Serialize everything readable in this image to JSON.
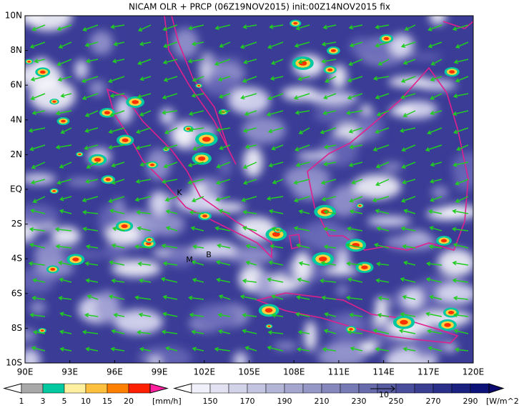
{
  "title": "NICAM OLR + PRCP (06Z19NOV2015) init:00Z14NOV2015 fix",
  "lat_labels": [
    "10N",
    "8N",
    "6N",
    "4N",
    "2N",
    "EQ",
    "2S",
    "4S",
    "6S",
    "8S",
    "10S"
  ],
  "lon_labels": [
    "90E",
    "93E",
    "96E",
    "99E",
    "102E",
    "105E",
    "108E",
    "111E",
    "114E",
    "117E",
    "120E"
  ],
  "markers": [
    "K",
    "M",
    "B"
  ],
  "vector_ref": "10",
  "precip_legend": {
    "labels": [
      "1",
      "3",
      "5",
      "10",
      "15",
      "20"
    ],
    "unit": "[mm/h]"
  },
  "olr_legend": {
    "labels": [
      "150",
      "170",
      "190",
      "210",
      "230",
      "250",
      "270",
      "290"
    ],
    "unit": "[W/m^2]"
  }
}
